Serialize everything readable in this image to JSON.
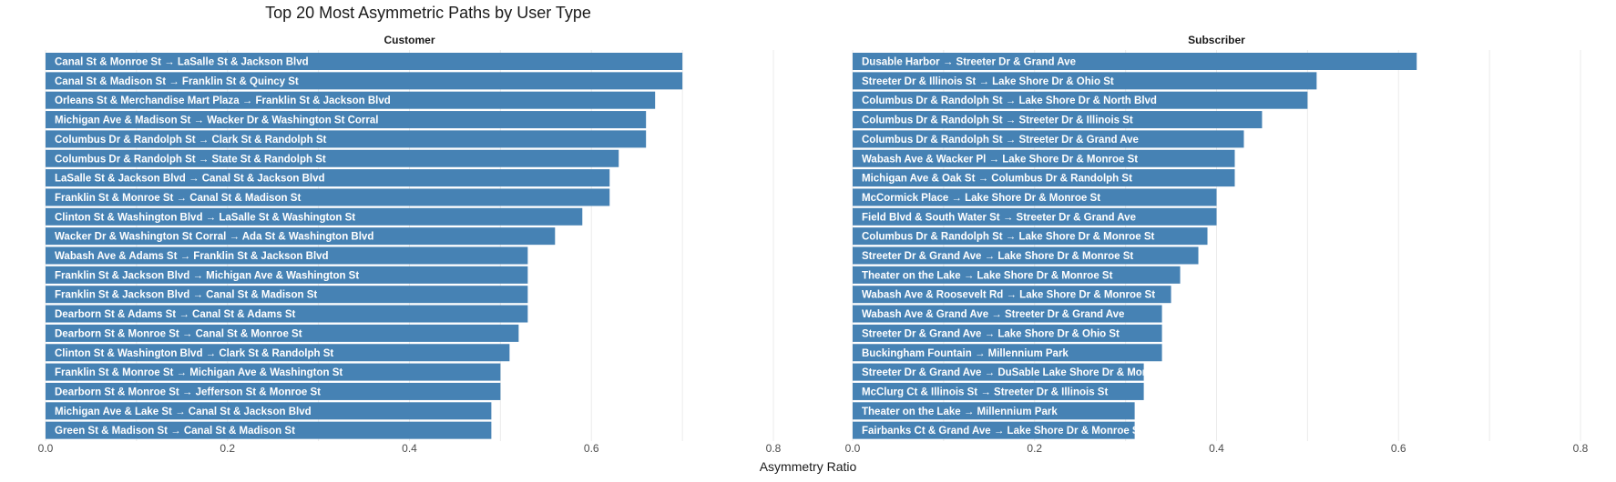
{
  "chart_data": {
    "type": "bar",
    "orientation": "horizontal",
    "title": "Top 20 Most Asymmetric Paths by User Type",
    "xlabel": "Asymmetry Ratio",
    "bar_color": "#4682b4",
    "grid": true,
    "facets": [
      {
        "name": "Customer",
        "xlim": [
          0,
          0.8
        ],
        "xticks": [
          "0.0",
          "0.2",
          "0.4",
          "0.6",
          "0.8"
        ],
        "categories": [
          "Canal St & Monroe St → LaSalle St & Jackson Blvd",
          "Canal St & Madison St → Franklin St & Quincy St",
          "Orleans St & Merchandise Mart Plaza → Franklin St & Jackson Blvd",
          "Michigan Ave & Madison St → Wacker Dr & Washington St Corral",
          "Columbus Dr & Randolph St → Clark St & Randolph St",
          "Columbus Dr & Randolph St → State St & Randolph St",
          "LaSalle St & Jackson Blvd → Canal St & Jackson Blvd",
          "Franklin St & Monroe St → Canal St & Madison St",
          "Clinton St & Washington Blvd → LaSalle St & Washington St",
          "Wacker Dr & Washington St Corral → Ada St & Washington Blvd",
          "Wabash Ave & Adams St → Franklin St & Jackson Blvd",
          "Franklin St & Jackson Blvd → Michigan Ave & Washington St",
          "Franklin St & Jackson Blvd → Canal St & Madison St",
          "Dearborn St & Adams St → Canal St & Adams St",
          "Dearborn St & Monroe St → Canal St & Monroe St",
          "Clinton St & Washington Blvd → Clark St & Randolph St",
          "Franklin St & Monroe St → Michigan Ave & Washington St",
          "Dearborn St & Monroe St → Jefferson St & Monroe St",
          "Michigan Ave & Lake St → Canal St & Jackson Blvd",
          "Green St & Madison St → Canal St & Madison St"
        ],
        "values": [
          0.7,
          0.7,
          0.67,
          0.66,
          0.66,
          0.63,
          0.62,
          0.62,
          0.59,
          0.56,
          0.53,
          0.53,
          0.53,
          0.53,
          0.52,
          0.51,
          0.5,
          0.5,
          0.49,
          0.49
        ]
      },
      {
        "name": "Subscriber",
        "xlim": [
          0,
          0.8
        ],
        "xticks": [
          "0.0",
          "0.2",
          "0.4",
          "0.6",
          "0.8"
        ],
        "categories": [
          "Dusable Harbor → Streeter Dr & Grand Ave",
          "Streeter Dr & Illinois St → Lake Shore Dr & Ohio St",
          "Columbus Dr & Randolph St → Lake Shore Dr & North Blvd",
          "Columbus Dr & Randolph St → Streeter Dr & Illinois St",
          "Columbus Dr & Randolph St → Streeter Dr & Grand Ave",
          "Wabash Ave & Wacker Pl → Lake Shore Dr & Monroe St",
          "Michigan Ave & Oak St → Columbus Dr & Randolph St",
          "McCormick Place → Lake Shore Dr & Monroe St",
          "Field Blvd & South Water St → Streeter Dr & Grand Ave",
          "Columbus Dr & Randolph St → Lake Shore Dr & Monroe St",
          "Streeter Dr & Grand Ave → Lake Shore Dr & Monroe St",
          "Theater on the Lake → Lake Shore Dr & Monroe St",
          "Wabash Ave & Roosevelt Rd → Lake Shore Dr & Monroe St",
          "Wabash Ave & Grand Ave → Streeter Dr & Grand Ave",
          "Streeter Dr & Grand Ave → Lake Shore Dr & Ohio St",
          "Buckingham Fountain → Millennium Park",
          "Streeter Dr & Grand Ave → DuSable Lake Shore Dr & Monroe St",
          "McClurg Ct & Illinois St → Streeter Dr & Illinois St",
          "Theater on the Lake → Millennium Park",
          "Fairbanks Ct & Grand Ave → Lake Shore Dr & Monroe St"
        ],
        "values": [
          0.62,
          0.51,
          0.5,
          0.45,
          0.43,
          0.42,
          0.42,
          0.4,
          0.4,
          0.39,
          0.38,
          0.36,
          0.35,
          0.34,
          0.34,
          0.34,
          0.32,
          0.32,
          0.31,
          0.31
        ]
      }
    ]
  }
}
